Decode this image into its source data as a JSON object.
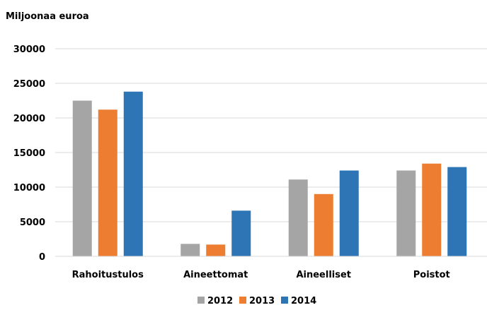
{
  "chart_data": {
    "type": "bar",
    "ylabel": "Miljoonaa euroa",
    "ylim": [
      0,
      30000
    ],
    "yticks": [
      0,
      5000,
      10000,
      15000,
      20000,
      25000,
      30000
    ],
    "categories": [
      "Rahoitustulos",
      "Aineettomat",
      "Aineelliset",
      "Poistot"
    ],
    "series": [
      {
        "name": "2012",
        "color": "#a5a5a5",
        "values": [
          22500,
          1800,
          11100,
          12400
        ]
      },
      {
        "name": "2013",
        "color": "#ed7d31",
        "values": [
          21200,
          1700,
          9000,
          13400
        ]
      },
      {
        "name": "2014",
        "color": "#2e75b6",
        "values": [
          23800,
          6600,
          12400,
          12900
        ]
      }
    ],
    "grid": true,
    "legend": "bottom-center"
  }
}
